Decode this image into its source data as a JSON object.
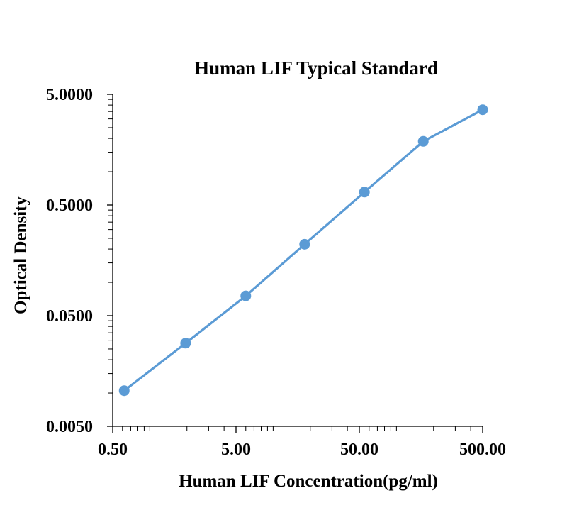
{
  "chart_data": {
    "type": "line",
    "title": "Human LIF Typical Standard",
    "xlabel": "Human LIF Concentration(pg/ml)",
    "ylabel": "Optical Density",
    "x_scale": "log",
    "y_scale": "log",
    "xlim": [
      0.5,
      500
    ],
    "ylim": [
      0.005,
      5
    ],
    "x_ticks": [
      "0.50",
      "5.00",
      "50.00",
      "500.00"
    ],
    "y_ticks": [
      "0.0050",
      "0.0500",
      "0.5000",
      "5.0000"
    ],
    "grid": false,
    "legend": false,
    "color": "#5b9bd5",
    "series": [
      {
        "x": [
          0.62,
          1.95,
          6.0,
          18.0,
          55.0,
          165.0,
          500.0
        ],
        "y": [
          0.0105,
          0.0282,
          0.0755,
          0.221,
          0.654,
          1.88,
          3.63
        ]
      }
    ]
  }
}
